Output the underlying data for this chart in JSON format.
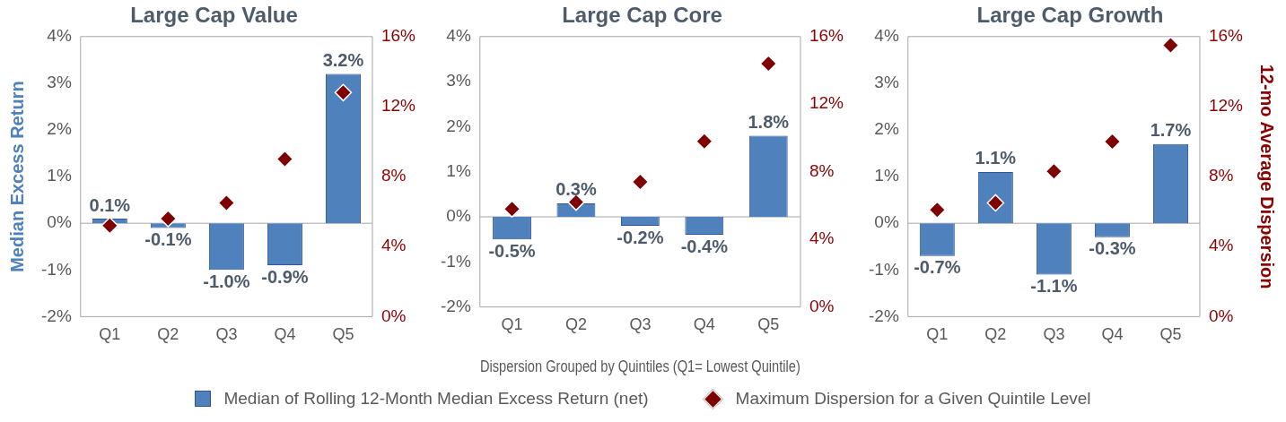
{
  "chart_data": [
    {
      "type": "bar",
      "title": "Large Cap Value",
      "ylabel": "Median Excess Return",
      "categories": [
        "Q1",
        "Q2",
        "Q3",
        "Q4",
        "Q5"
      ],
      "series": [
        {
          "name": "Median of Rolling 12-Month Median Excess Return (net)",
          "color": "#4f81bd",
          "values": [
            0.1,
            -0.1,
            -1.0,
            -0.9,
            3.2
          ],
          "value_labels": [
            "0.1%",
            "-0.1%",
            "-1.0%",
            "-0.9%",
            "3.2%"
          ]
        },
        {
          "name": "Maximum Dispersion for a Given Quintile Level",
          "type": "scatter",
          "axis": "y2",
          "color": "#7f0000",
          "marker": "diamond",
          "values": [
            5.2,
            5.6,
            6.5,
            9.0,
            12.8
          ]
        }
      ],
      "ylim": [
        -2,
        4
      ],
      "yticks": [
        {
          "value": -2,
          "label": "-2%"
        },
        {
          "value": -1,
          "label": "-1%"
        },
        {
          "value": 0,
          "label": "0%"
        },
        {
          "value": 1,
          "label": "1%"
        },
        {
          "value": 2,
          "label": "2%"
        },
        {
          "value": 3,
          "label": "3%"
        },
        {
          "value": 4,
          "label": "4%"
        }
      ],
      "y2lim": [
        0,
        16
      ],
      "y2ticks": [
        {
          "value": 0,
          "label": "0%"
        },
        {
          "value": 4,
          "label": "4%"
        },
        {
          "value": 8,
          "label": "8%"
        },
        {
          "value": 12,
          "label": "12%"
        },
        {
          "value": 16,
          "label": "16%"
        }
      ],
      "ref_lines": [
        {
          "axis": "y",
          "value": 0,
          "color": "#a6a6a6"
        }
      ],
      "grid": false,
      "legend": "bottom"
    },
    {
      "type": "bar",
      "title": "Large Cap Core",
      "xlabel": "Dispersion Grouped by Quintiles (Q1= Lowest Quintile)",
      "categories": [
        "Q1",
        "Q2",
        "Q3",
        "Q4",
        "Q5"
      ],
      "series": [
        {
          "color": "#4f81bd",
          "values": [
            -0.5,
            0.3,
            -0.2,
            -0.4,
            1.8
          ],
          "value_labels": [
            "-0.5%",
            "0.3%",
            "-0.2%",
            "-0.4%",
            "1.8%"
          ]
        },
        {
          "type": "scatter",
          "axis": "y2",
          "color": "#7f0000",
          "marker": "diamond",
          "values": [
            5.8,
            6.2,
            7.4,
            9.8,
            14.4
          ]
        }
      ],
      "ylim": [
        -2,
        4
      ],
      "yticks": [
        {
          "value": -2,
          "label": "-2%"
        },
        {
          "value": -1,
          "label": "-1%"
        },
        {
          "value": 0,
          "label": "0%"
        },
        {
          "value": 1,
          "label": "1%"
        },
        {
          "value": 2,
          "label": "2%"
        },
        {
          "value": 3,
          "label": "3%"
        },
        {
          "value": 4,
          "label": "4%"
        }
      ],
      "y2lim": [
        0,
        16
      ],
      "y2ticks": [
        {
          "value": 0,
          "label": "0%"
        },
        {
          "value": 4,
          "label": "4%"
        },
        {
          "value": 8,
          "label": "8%"
        },
        {
          "value": 12,
          "label": "12%"
        },
        {
          "value": 16,
          "label": "16%"
        }
      ],
      "ref_lines": [
        {
          "axis": "y",
          "value": 0,
          "color": "#a6a6a6"
        }
      ],
      "grid": false
    },
    {
      "type": "bar",
      "title": "Large Cap Growth",
      "y2label": "12-mo Average Dispersion",
      "categories": [
        "Q1",
        "Q2",
        "Q3",
        "Q4",
        "Q5"
      ],
      "series": [
        {
          "color": "#4f81bd",
          "values": [
            -0.7,
            1.1,
            -1.1,
            -0.3,
            1.7
          ],
          "value_labels": [
            "-0.7%",
            "1.1%",
            "-1.1%",
            "-0.3%",
            "1.7%"
          ]
        },
        {
          "type": "scatter",
          "axis": "y2",
          "color": "#7f0000",
          "marker": "diamond",
          "values": [
            6.1,
            6.5,
            8.3,
            10.0,
            15.5
          ]
        }
      ],
      "ylim": [
        -2,
        4
      ],
      "yticks": [
        {
          "value": -2,
          "label": "-2%"
        },
        {
          "value": -1,
          "label": "-1%"
        },
        {
          "value": 0,
          "label": "0%"
        },
        {
          "value": 1,
          "label": "1%"
        },
        {
          "value": 2,
          "label": "2%"
        },
        {
          "value": 3,
          "label": "3%"
        },
        {
          "value": 4,
          "label": "4%"
        }
      ],
      "y2lim": [
        0,
        16
      ],
      "y2ticks": [
        {
          "value": 0,
          "label": "0%"
        },
        {
          "value": 4,
          "label": "4%"
        },
        {
          "value": 8,
          "label": "8%"
        },
        {
          "value": 12,
          "label": "12%"
        },
        {
          "value": 16,
          "label": "16%"
        }
      ],
      "ref_lines": [
        {
          "axis": "y",
          "value": 0,
          "color": "#a6a6a6"
        }
      ],
      "grid": false
    }
  ]
}
